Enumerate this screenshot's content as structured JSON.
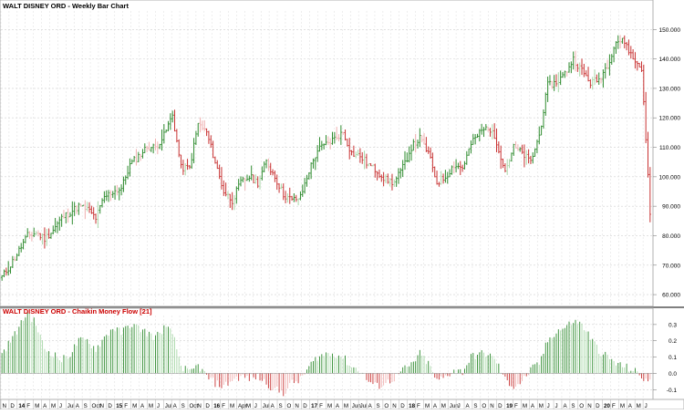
{
  "chart_data": [
    {
      "type": "bar",
      "style": "weekly-ohlc",
      "title": "WALT DISNEY ORD - Weekly Bar Chart",
      "y_ticks": [
        60,
        70,
        80,
        90,
        100,
        110,
        120,
        130,
        140,
        150
      ],
      "y_tick_labels": [
        "60.000",
        "70.000",
        "80.000",
        "90.000",
        "100.000",
        "110.000",
        "120.000",
        "130.000",
        "140.000",
        "150.000"
      ],
      "ylim": [
        56,
        160
      ],
      "colors": {
        "up": "#2e8b2e",
        "down": "#c83232",
        "up_light": "#a8d8a8",
        "down_light": "#f0b0b0"
      },
      "grid": true,
      "close_path": {
        "x": [
          "2013-11",
          "2013-12",
          "2014-01",
          "2014-02",
          "2014-03",
          "2014-04",
          "2014-05",
          "2014-06",
          "2014-07",
          "2014-08",
          "2014-09",
          "2014-10",
          "2014-11",
          "2014-12",
          "2015-01",
          "2015-02",
          "2015-03",
          "2015-04",
          "2015-05",
          "2015-06",
          "2015-07",
          "2015-08",
          "2015-09",
          "2015-10",
          "2015-11",
          "2015-12",
          "2016-01",
          "2016-02",
          "2016-03",
          "2016-04",
          "2016-05",
          "2016-06",
          "2016-07",
          "2016-08",
          "2016-09",
          "2016-10",
          "2016-11",
          "2016-12",
          "2017-01",
          "2017-02",
          "2017-03",
          "2017-04",
          "2017-05",
          "2017-06",
          "2017-07",
          "2017-08",
          "2017-09",
          "2017-10",
          "2017-11",
          "2017-12",
          "2018-01",
          "2018-02",
          "2018-03",
          "2018-04",
          "2018-05",
          "2018-06",
          "2018-07",
          "2018-08",
          "2018-09",
          "2018-10",
          "2018-11",
          "2018-12",
          "2019-01",
          "2019-02",
          "2019-03",
          "2019-04",
          "2019-05",
          "2019-06",
          "2019-07",
          "2019-08",
          "2019-09",
          "2019-10",
          "2019-11",
          "2019-12",
          "2020-01",
          "2020-02",
          "2020-03"
        ],
        "close": [
          66,
          70,
          75,
          80,
          81,
          79,
          82,
          86,
          88,
          90,
          89,
          86,
          93,
          95,
          96,
          104,
          107,
          110,
          110,
          114,
          121,
          103,
          103,
          118,
          115,
          105,
          95,
          92,
          98,
          100,
          98,
          105,
          100,
          94,
          92,
          93,
          102,
          109,
          111,
          113,
          115,
          108,
          107,
          104,
          102,
          99,
          98,
          103,
          110,
          113,
          108,
          98,
          100,
          104,
          103,
          111,
          115,
          117,
          112,
          102,
          110,
          108,
          105,
          114,
          131,
          132,
          135,
          140,
          136,
          132,
          133,
          138,
          146,
          146,
          140,
          137,
          88
        ]
      },
      "x_tick_labels": [
        "N",
        "D",
        "14",
        "F",
        "M",
        "A",
        "M",
        "J",
        "Jul",
        "A",
        "S",
        "Oct",
        "N",
        "D",
        "15",
        "F",
        "M",
        "A",
        "M",
        "J",
        "Jul",
        "A",
        "S",
        "Oct",
        "N",
        "D",
        "16",
        "F",
        "M",
        "Apr",
        "M",
        "J",
        "Jul",
        "A",
        "S",
        "O",
        "N",
        "D",
        "17",
        "F",
        "M",
        "A",
        "M",
        "Jun",
        "Jul",
        "A",
        "S",
        "O",
        "N",
        "D",
        "18",
        "F",
        "M",
        "A",
        "M",
        "Jun",
        "J",
        "A",
        "S",
        "O",
        "N",
        "D",
        "19",
        "F",
        "M",
        "A",
        "M",
        "J",
        "J",
        "A",
        "S",
        "O",
        "N",
        "D",
        "20",
        "F",
        "M",
        "A",
        "M",
        "J"
      ],
      "x_tick_bold": [
        "14",
        "15",
        "16",
        "17",
        "18",
        "19",
        "20"
      ]
    },
    {
      "type": "bar",
      "title": "WALT DISNEY ORD - Chaikin Money Flow [21]",
      "y_ticks": [
        -0.1,
        0.0,
        0.1,
        0.2,
        0.3
      ],
      "y_tick_labels": [
        "-0.1",
        "0.0",
        "0.1",
        "0.2",
        "0.3"
      ],
      "ylim": [
        -0.16,
        0.4
      ],
      "colors": {
        "pos": "#2e8b2e",
        "pos_light": "#a8d8a8",
        "neg": "#c83232",
        "neg_light": "#f0b0b0"
      },
      "x": [
        "2013-11",
        "2013-12",
        "2014-01",
        "2014-02",
        "2014-03",
        "2014-04",
        "2014-05",
        "2014-06",
        "2014-07",
        "2014-08",
        "2014-09",
        "2014-10",
        "2014-11",
        "2014-12",
        "2015-01",
        "2015-02",
        "2015-03",
        "2015-04",
        "2015-05",
        "2015-06",
        "2015-07",
        "2015-08",
        "2015-09",
        "2015-10",
        "2015-11",
        "2015-12",
        "2016-01",
        "2016-02",
        "2016-03",
        "2016-04",
        "2016-05",
        "2016-06",
        "2016-07",
        "2016-08",
        "2016-09",
        "2016-10",
        "2016-11",
        "2016-12",
        "2017-01",
        "2017-02",
        "2017-03",
        "2017-04",
        "2017-05",
        "2017-06",
        "2017-07",
        "2017-08",
        "2017-09",
        "2017-10",
        "2017-11",
        "2017-12",
        "2018-01",
        "2018-02",
        "2018-03",
        "2018-04",
        "2018-05",
        "2018-06",
        "2018-07",
        "2018-08",
        "2018-09",
        "2018-10",
        "2018-11",
        "2018-12",
        "2019-01",
        "2019-02",
        "2019-03",
        "2019-04",
        "2019-05",
        "2019-06",
        "2019-07",
        "2019-08",
        "2019-09",
        "2019-10",
        "2019-11",
        "2019-12",
        "2020-01",
        "2020-02",
        "2020-03"
      ],
      "values": [
        0.12,
        0.2,
        0.28,
        0.38,
        0.3,
        0.15,
        0.12,
        0.08,
        0.12,
        0.2,
        0.2,
        0.15,
        0.22,
        0.28,
        0.25,
        0.3,
        0.28,
        0.25,
        0.22,
        0.28,
        0.25,
        0.05,
        0.0,
        0.05,
        -0.02,
        -0.06,
        -0.08,
        -0.04,
        -0.02,
        -0.03,
        -0.02,
        -0.06,
        -0.1,
        -0.12,
        -0.06,
        -0.04,
        0.04,
        0.1,
        0.12,
        0.12,
        0.1,
        0.04,
        0.02,
        -0.05,
        -0.08,
        -0.06,
        -0.03,
        0.02,
        0.05,
        0.12,
        0.06,
        -0.05,
        -0.02,
        0.02,
        0.01,
        0.1,
        0.12,
        0.12,
        0.07,
        -0.04,
        -0.08,
        -0.05,
        0.02,
        0.06,
        0.2,
        0.26,
        0.28,
        0.32,
        0.3,
        0.22,
        0.14,
        0.1,
        0.06,
        0.04,
        0.02,
        -0.02,
        -0.06
      ]
    }
  ]
}
